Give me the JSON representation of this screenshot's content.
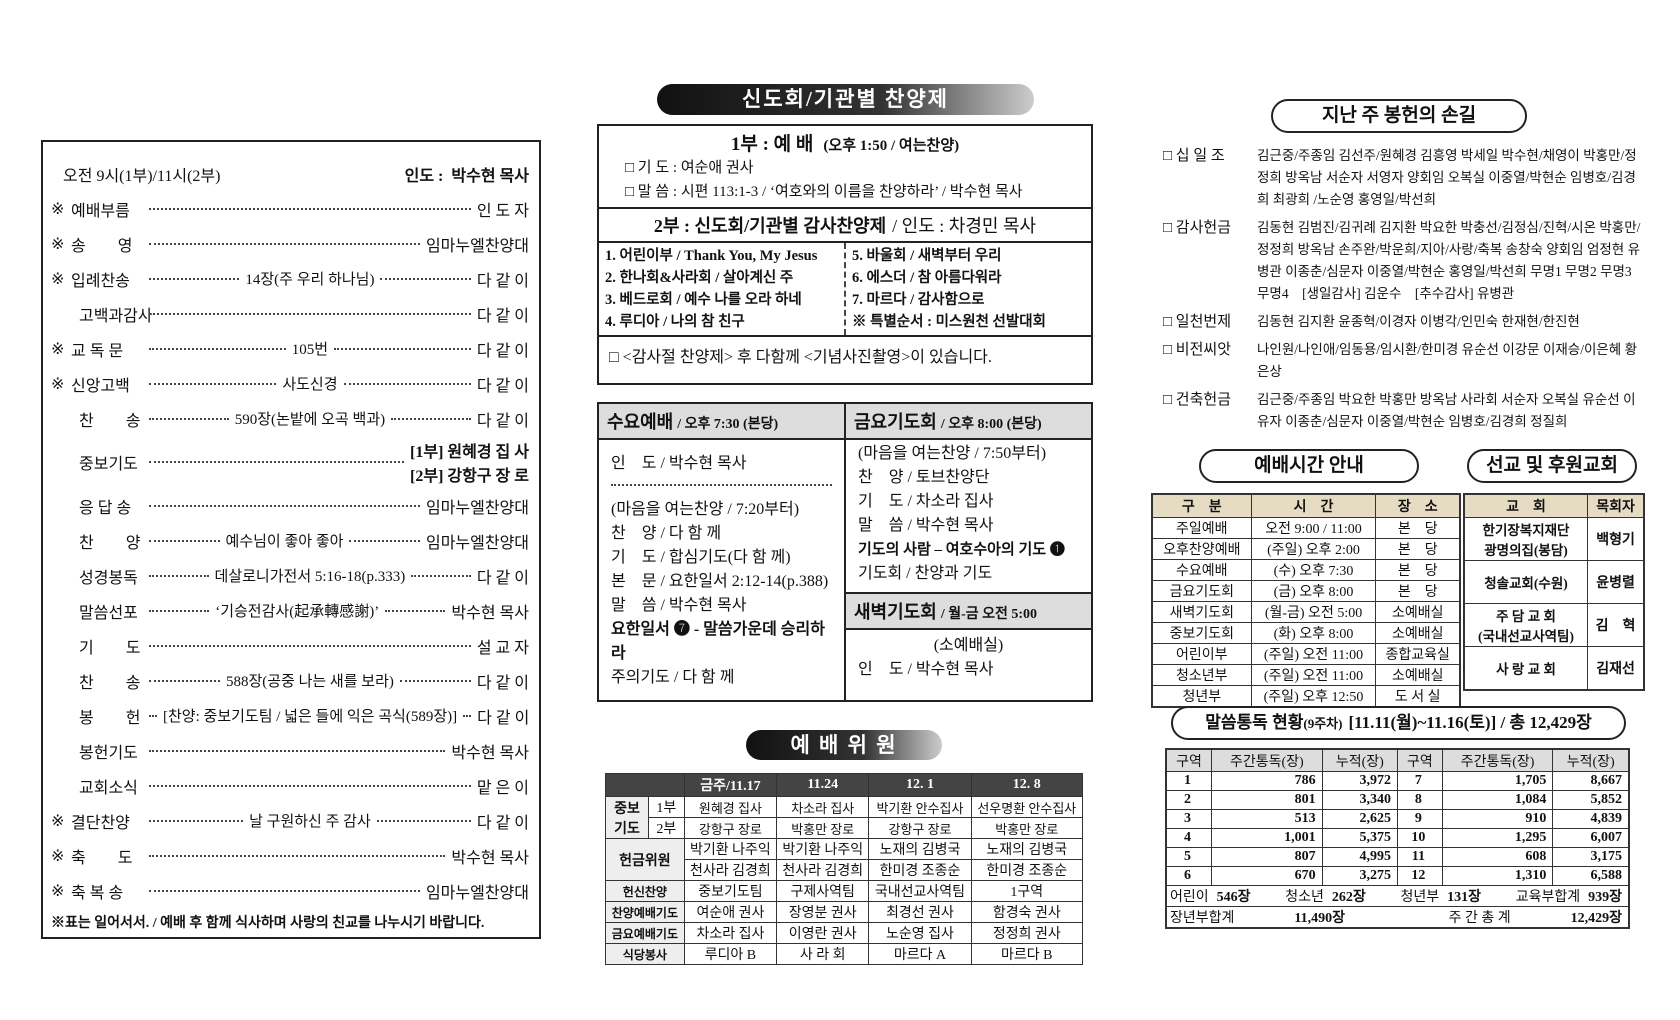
{
  "order_of_worship": {
    "header": {
      "time": "오전 9시(1부)/11시(2부)",
      "leader_label": "인도 :",
      "leader": "박수현 목사"
    },
    "items": [
      {
        "mark": "※",
        "name": "예배부름",
        "by": "인 도 자"
      },
      {
        "mark": "※",
        "name": "송　　영",
        "by": "임마누엘찬양대"
      },
      {
        "mark": "※",
        "name": "입례찬송",
        "detail": "14장(주 우리 하나님)",
        "by": "다 같 이"
      },
      {
        "name": "고백과감사",
        "by": "다 같 이"
      },
      {
        "mark": "※",
        "name": "교 독 문",
        "detail": "105번",
        "by": "다 같 이"
      },
      {
        "mark": "※",
        "name": "신앙고백",
        "detail": "사도신경",
        "by": "다 같 이"
      },
      {
        "name": "찬　　송",
        "detail": "590장(논밭에 오곡 백과)",
        "by": "다 같 이"
      },
      {
        "name": "중보기도",
        "by": [
          "[1부] 원혜경 집 사",
          "[2부] 강항구 장 로"
        ]
      },
      {
        "name": "응 답 송",
        "by": "임마누엘찬양대"
      },
      {
        "name": "찬　　양",
        "detail": "예수님이 좋아 좋아",
        "by": "임마누엘찬양대"
      },
      {
        "name": "성경봉독",
        "detail": "데살로니가전서 5:16-18(p.333)",
        "by": "다 같 이"
      },
      {
        "name": "말씀선포",
        "detail": "‘기승전감사(起承轉感謝)’",
        "by": "박수현 목사"
      },
      {
        "name": "기　　도",
        "by": "설 교 자"
      },
      {
        "name": "찬　　송",
        "detail": "588장(공중 나는 새를 보라)",
        "by": "다 같 이"
      },
      {
        "name": "봉　　헌",
        "detail": "[찬양: 중보기도팀 / 넓은 들에 익은 곡식(589장)]",
        "by": "다 같 이"
      },
      {
        "name": "봉헌기도",
        "by": "박수현 목사"
      },
      {
        "name": "교회소식",
        "by": "맡 은 이"
      },
      {
        "mark": "※",
        "name": "결단찬양",
        "detail": "날 구원하신 주 감사",
        "by": "다 같 이"
      },
      {
        "mark": "※",
        "name": "축　　도",
        "by": "박수현 목사"
      },
      {
        "mark": "※",
        "name": "축 복 송",
        "by": "임마누엘찬양대"
      }
    ],
    "footnote": "※표는 일어서서. / 예배 후 함께 식사하며 사랑의 친교를 나누시기 바랍니다."
  },
  "praise_festival": {
    "banner": "신도회/기관별 찬양제",
    "part1": {
      "title": "1부 : 예 배",
      "time": "(오후 1:50 / 여는찬양)",
      "lines": [
        "□ 기 도 : 여순애 권사",
        "□ 말 씀 : 시편 113:1-3 / ‘여호와의 이름을 찬양하라’ / 박수현 목사"
      ]
    },
    "part2": {
      "title": "2부 : 신도회/기관별 감사찬양제",
      "leader": "/ 인도 : 차경민 목사",
      "left": [
        "1. 어린이부 / Thank You, My Jesus",
        "2. 한나회&사라회 / 살아계신 주",
        "3. 베드로회 / 예수 나를 오라 하네",
        "4. 루디아 / 나의 참 친구"
      ],
      "right": [
        "5. 바울회 / 새벽부터 우리",
        "6. 에스더 / 참 아름다워라",
        "7. 마르다 / 감사함으로",
        "※ 특별순서 : 미스원천 선발대회"
      ]
    },
    "note": "□ <감사절 찬양제> 후 다함께 <기념사진촬영>이 있습니다."
  },
  "weekday": {
    "wednesday": {
      "title": "수요예배",
      "time": "/ 오후 7:30 (본당)",
      "leader": "인　도 / 박수현 목사",
      "opening": "(마음을 여는찬양 / 7:20부터)",
      "lines": [
        "찬　양 / 다 함 께",
        "기　도 / 합심기도(다 함 께)",
        "본　문 / 요한일서 2:12-14(p.388)",
        "말　씀 / 박수현 목사"
      ],
      "series": "요한일서 ❼ - 말씀가운데 승리하라",
      "closing": "주의기도 / 다 함 께"
    },
    "friday": {
      "title": "금요기도회",
      "time": "/ 오후 8:00 (본당)",
      "opening": "(마음을 여는찬양 / 7:50부터)",
      "lines": [
        "찬　양 / 토브찬양단",
        "기　도 / 차소라 집사",
        "말　씀 / 박수현 목사"
      ],
      "series": "기도의 사람 – 여호수아의 기도 ❶",
      "closing": "기도회 / 찬양과 기도"
    },
    "dawn": {
      "title": "새벽기도회",
      "time": "/ 월-금 오전 5:00",
      "place": "(소예배실)",
      "leader": "인　도 / 박수현 목사"
    }
  },
  "worship_staff": {
    "banner": "예 배 위 원",
    "dates": [
      "금주/11.17",
      "11.24",
      "12. 1",
      "12. 8"
    ],
    "intercession": {
      "label": "중보기도",
      "rows": [
        {
          "part": "1부",
          "cells": [
            "원혜경 집사",
            "차소라 집사",
            "박기환 안수집사",
            "선우명환 안수집사"
          ]
        },
        {
          "part": "2부",
          "cells": [
            "강항구 장로",
            "박홍만 장로",
            "강항구 장로",
            "박홍만 장로"
          ]
        }
      ]
    },
    "offering": {
      "label": "헌금위원",
      "cells": [
        [
          "박기환 나주익",
          "천사라 김경희"
        ],
        [
          "박기환 나주익",
          "천사라 김경희"
        ],
        [
          "노재의 김병국",
          "한미경 조종순"
        ],
        [
          "노재의 김병국",
          "한미경 조종순"
        ]
      ]
    },
    "rows": [
      {
        "label": "헌신찬양",
        "cells": [
          "중보기도팀",
          "구제사역팀",
          "국내선교사역팀",
          "1구역"
        ]
      },
      {
        "label": "찬양예배기도",
        "cells": [
          "여순애 권사",
          "장영분 권사",
          "최경선 권사",
          "함경숙 권사"
        ]
      },
      {
        "label": "금요예배기도",
        "cells": [
          "차소라 집사",
          "이영란 권사",
          "노순영 집사",
          "정정희 권사"
        ]
      },
      {
        "label": "식당봉사",
        "cells": [
          "루디아 B",
          "사 라 회",
          "마르다 A",
          "마르다 B"
        ]
      }
    ]
  },
  "offerings": {
    "title": "지난 주 봉헌의 손길",
    "groups": [
      {
        "label": "□ 십 일 조",
        "text": "김근중/주종임 김선주/원혜경 김흥영 박세일 박수현/채영이 박홍만/정정희 방옥남 서순자 서영자 양회임 오복실 이중열/박현순 임병호/김경희 최광희 /노순영 홍영일/박선희"
      },
      {
        "label": "□ 감사헌금",
        "text": "김동현 김범진/김귀례 김지환 박요한 박충선/김정심/진혁/시온 박홍만/정정희 방옥남 손주완/박운희/지아/사랑/축복 송창숙 양회임 엄정현 유병관 이종춘/심문자 이중열/박현순 홍영일/박선희 무명1 무명2 무명3 무명4　[생일감사] 김운수　[추수감사] 유병관"
      },
      {
        "label": "□ 일천번제",
        "text": "김동현 김지환 윤종혁/이경자 이병각/인민숙 한재현/한진현"
      },
      {
        "label": "□ 비전씨앗",
        "text": "나인원/나인애/임동용/임시환/한미경 유순선 이강문 이재승/이은혜 황은상"
      },
      {
        "label": "□ 건축헌금",
        "text": "김근중/주종임 박요한 박홍만 방옥남 사라회 서순자 오복실 유순선 이유자 이종춘/심문자 이중열/박현순 임병호/김경희 정질희"
      }
    ]
  },
  "service_times": {
    "title": "예배시간 안내",
    "header": [
      "구　분",
      "시　간",
      "장　소"
    ],
    "rows": [
      [
        "주일예배",
        "오전 9:00 / 11:00",
        "본　당"
      ],
      [
        "오후찬양예배",
        "(주일) 오후 2:00",
        "본　당"
      ],
      [
        "수요예배",
        "(수) 오후 7:30",
        "본　당"
      ],
      [
        "금요기도회",
        "(금) 오후 8:00",
        "본　당"
      ],
      [
        "새벽기도회",
        "(월-금) 오전 5:00",
        "소예배실"
      ],
      [
        "중보기도회",
        "(화) 오후 8:00",
        "소예배실"
      ],
      [
        "어린이부",
        "(주일) 오전 11:00",
        "종합교육실"
      ],
      [
        "청소년부",
        "(주일) 오전 11:00",
        "소예배실"
      ],
      [
        "청년부",
        "(주일) 오후 12:50",
        "도 서 실"
      ]
    ]
  },
  "missions": {
    "title": "선교 및 후원교회",
    "header": [
      "교　회",
      "목회자"
    ],
    "rows": [
      {
        "church": [
          "한기장복지재단",
          "광명의집(봉담)"
        ],
        "pastor": "백형기"
      },
      {
        "church": [
          "청솔교회(수원)"
        ],
        "pastor": "윤병렬"
      },
      {
        "church": [
          "주 담 교 회",
          "(국내선교사역팀)"
        ],
        "pastor": "김　혁"
      },
      {
        "church": [
          "사 랑 교 회"
        ],
        "pastor": "김재선"
      }
    ]
  },
  "bible_reading": {
    "title": "말씀통독 현황",
    "week": "(9주차)",
    "period": "[11.11(월)~11.16(토)] / 총 12,429장",
    "header": [
      "구역",
      "주간통독(장)",
      "누적(장)",
      "구역",
      "주간통독(장)",
      "누적(장)"
    ],
    "rows": [
      [
        "1",
        "786",
        "3,972",
        "7",
        "1,705",
        "8,667"
      ],
      [
        "2",
        "801",
        "3,340",
        "8",
        "1,084",
        "5,852"
      ],
      [
        "3",
        "513",
        "2,625",
        "9",
        "910",
        "4,839"
      ],
      [
        "4",
        "1,001",
        "5,375",
        "10",
        "1,295",
        "6,007"
      ],
      [
        "5",
        "807",
        "4,995",
        "11",
        "608",
        "3,175"
      ],
      [
        "6",
        "670",
        "3,275",
        "12",
        "1,310",
        "6,588"
      ]
    ],
    "groups": [
      {
        "label": "어린이",
        "value": "546장"
      },
      {
        "label": "청소년",
        "value": "262장"
      },
      {
        "label": "청년부",
        "value": "131장"
      },
      {
        "label": "교육부합계",
        "value": "939장"
      }
    ],
    "totals": [
      {
        "label": "장년부합계",
        "value": "11,490장"
      },
      {
        "label": "주 간 총 계",
        "value": "12,429장"
      }
    ]
  }
}
